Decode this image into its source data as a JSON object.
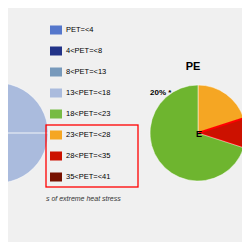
{
  "chart_data": [
    {
      "type": "pie",
      "values": [
        100
      ],
      "colors": [
        "#AABBDD"
      ]
    },
    {
      "type": "pie",
      "title": "PE",
      "values": [
        20,
        10,
        70
      ],
      "colors": [
        "#F5A623",
        "#CC1100",
        "#6EB52F"
      ],
      "annotations": [
        "20% *",
        "E"
      ],
      "subtitle": "s of extreme heat stress",
      "series": [
        {
          "name": "PET=<4",
          "color": "#5577CC"
        },
        {
          "name": "4<PET=<8",
          "color": "#223388"
        },
        {
          "name": "8<PET=<13",
          "color": "#7799BB"
        },
        {
          "name": "13<PET=<18",
          "color": "#AABBDD"
        },
        {
          "name": "18<PET=<23",
          "color": "#77BB44"
        },
        {
          "name": "23<PET=<28",
          "color": "#F5A623"
        },
        {
          "name": "28<PET=<35",
          "color": "#CC1100"
        },
        {
          "name": "35<PET=<41",
          "color": "#771100"
        }
      ]
    }
  ]
}
